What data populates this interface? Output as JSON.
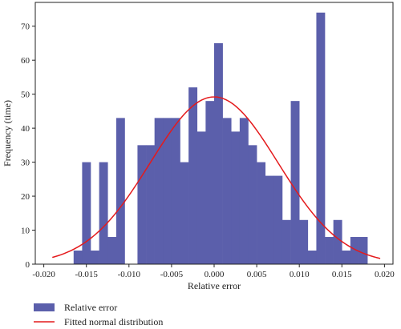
{
  "chart_data": {
    "type": "bar",
    "title": "",
    "xlabel": "Relative error",
    "ylabel": "Frequency (time)",
    "xlim": [
      -0.021,
      0.021
    ],
    "ylim": [
      0,
      77
    ],
    "x_ticks": [
      -0.02,
      -0.015,
      -0.01,
      -0.005,
      0.0,
      0.005,
      0.01,
      0.015,
      0.02
    ],
    "x_tick_labels": [
      "-0.020",
      "-0.015",
      "-0.010",
      "-0.005",
      "0.000",
      "0.005",
      "0.010",
      "0.015",
      "0.020"
    ],
    "y_ticks": [
      0,
      10,
      20,
      30,
      40,
      50,
      60,
      70
    ],
    "y_tick_labels": [
      "0",
      "10",
      "20",
      "30",
      "40",
      "50",
      "60",
      "70"
    ],
    "bin_width": 0.001,
    "bins": [
      {
        "x0": -0.0165,
        "x1": -0.0155,
        "value": 4
      },
      {
        "x0": -0.0155,
        "x1": -0.0145,
        "value": 30
      },
      {
        "x0": -0.0145,
        "x1": -0.0135,
        "value": 4
      },
      {
        "x0": -0.0135,
        "x1": -0.0125,
        "value": 30
      },
      {
        "x0": -0.0125,
        "x1": -0.0115,
        "value": 8
      },
      {
        "x0": -0.0115,
        "x1": -0.0105,
        "value": 43
      },
      {
        "x0": -0.009,
        "x1": -0.008,
        "value": 35
      },
      {
        "x0": -0.008,
        "x1": -0.007,
        "value": 35
      },
      {
        "x0": -0.007,
        "x1": -0.006,
        "value": 43
      },
      {
        "x0": -0.006,
        "x1": -0.005,
        "value": 43
      },
      {
        "x0": -0.005,
        "x1": -0.004,
        "value": 43
      },
      {
        "x0": -0.004,
        "x1": -0.003,
        "value": 30
      },
      {
        "x0": -0.003,
        "x1": -0.002,
        "value": 52
      },
      {
        "x0": -0.002,
        "x1": -0.001,
        "value": 39
      },
      {
        "x0": -0.001,
        "x1": 0.0,
        "value": 48
      },
      {
        "x0": 0.0,
        "x1": 0.001,
        "value": 65
      },
      {
        "x0": 0.001,
        "x1": 0.002,
        "value": 43
      },
      {
        "x0": 0.002,
        "x1": 0.003,
        "value": 39
      },
      {
        "x0": 0.003,
        "x1": 0.004,
        "value": 43
      },
      {
        "x0": 0.004,
        "x1": 0.005,
        "value": 35
      },
      {
        "x0": 0.005,
        "x1": 0.006,
        "value": 30
      },
      {
        "x0": 0.006,
        "x1": 0.007,
        "value": 26
      },
      {
        "x0": 0.007,
        "x1": 0.008,
        "value": 26
      },
      {
        "x0": 0.008,
        "x1": 0.009,
        "value": 13
      },
      {
        "x0": 0.009,
        "x1": 0.01,
        "value": 48
      },
      {
        "x0": 0.01,
        "x1": 0.011,
        "value": 13
      },
      {
        "x0": 0.011,
        "x1": 0.012,
        "value": 4
      },
      {
        "x0": 0.012,
        "x1": 0.013,
        "value": 74
      },
      {
        "x0": 0.013,
        "x1": 0.014,
        "value": 8
      },
      {
        "x0": 0.014,
        "x1": 0.015,
        "value": 13
      },
      {
        "x0": 0.015,
        "x1": 0.016,
        "value": 4
      },
      {
        "x0": 0.016,
        "x1": 0.017,
        "value": 8
      },
      {
        "x0": 0.017,
        "x1": 0.018,
        "value": 8
      }
    ],
    "fit": {
      "type": "normal",
      "mean": 0.0,
      "std": 0.0075,
      "peak": 49.2,
      "x_range": [
        -0.019,
        0.0195
      ]
    },
    "legend": {
      "placement": "bottom-left",
      "entries": [
        {
          "label": "Relative error",
          "kind": "patch",
          "color": "#5b5fab"
        },
        {
          "label": "Fitted normal distribution",
          "kind": "line",
          "color": "#e41a1c"
        }
      ]
    },
    "grid": false,
    "colors": {
      "bar": "#5b5fab",
      "fit_line": "#e41a1c",
      "axis": "#222222"
    }
  }
}
